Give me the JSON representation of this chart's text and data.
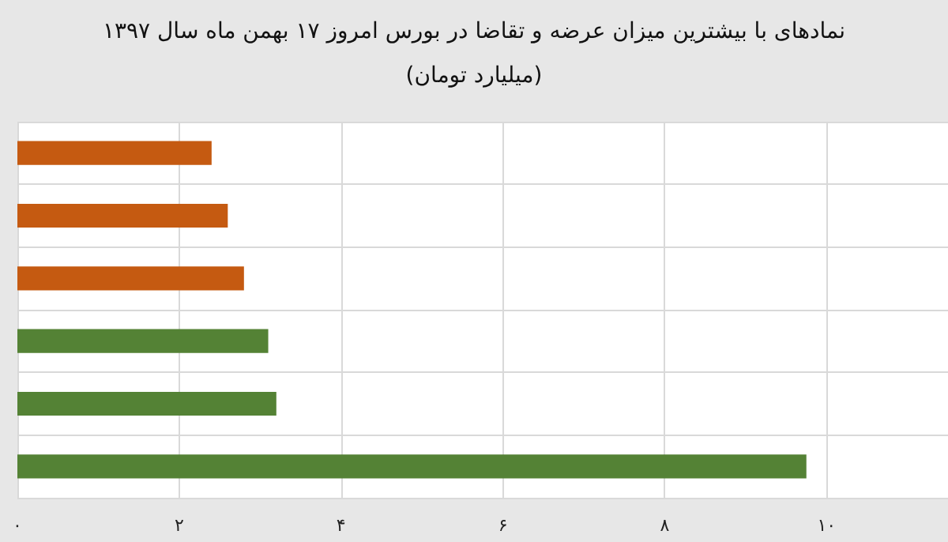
{
  "chart_data": {
    "type": "bar",
    "orientation": "horizontal",
    "title": "نمادهای با بیشترین میزان عرضه و تقاضا در بورس امروز ۱۷ بهمن ماه سال ۱۳۹۷",
    "subtitle": "(میلیارد تومان)",
    "categories": [
      null,
      null,
      null,
      null,
      null,
      null
    ],
    "values": [
      2.4,
      2.6,
      2.8,
      3.1,
      3.2,
      9.75
    ],
    "colors": [
      "#c55a11",
      "#c55a11",
      "#c55a11",
      "#548235",
      "#548235",
      "#548235"
    ],
    "xlim": [
      0,
      11.5
    ],
    "xticks": [
      {
        "value": 0,
        "label": "۰"
      },
      {
        "value": 2,
        "label": "۲"
      },
      {
        "value": 4,
        "label": "۴"
      },
      {
        "value": 6,
        "label": "۶"
      },
      {
        "value": 8,
        "label": "۸"
      },
      {
        "value": 10,
        "label": "۱۰"
      }
    ],
    "grid": true
  }
}
